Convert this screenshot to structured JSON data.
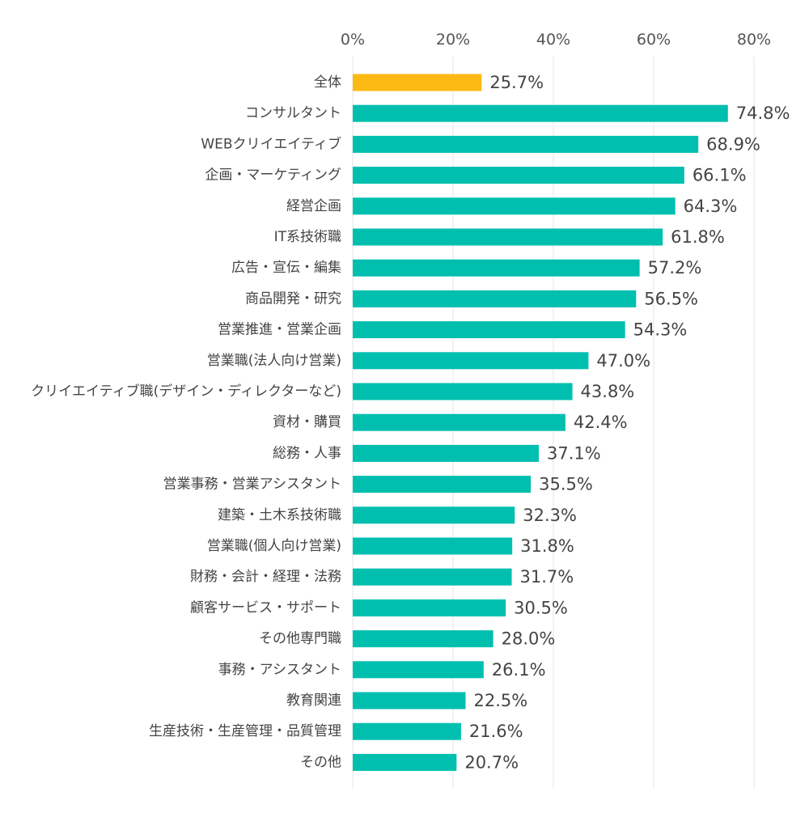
{
  "chart_data": {
    "type": "bar",
    "orientation": "horizontal",
    "xlim": [
      0,
      80
    ],
    "x_ticks": [
      "0%",
      "20%",
      "40%",
      "60%",
      "80%"
    ],
    "grid": true,
    "categories": [
      "全体",
      "コンサルタント",
      "WEBクリイエイティブ",
      "企画・マーケティング",
      "経営企画",
      "IT系技術職",
      "広告・宣伝・編集",
      "商品開発・研究",
      "営業推進・営業企画",
      "営業職(法人向け営業)",
      "クリイエイティブ職(デザイン・ディレクターなど)",
      "資材・購買",
      "総務・人事",
      "営業事務・営業アシスタント",
      "建築・土木系技術職",
      "営業職(個人向け営業)",
      "財務・会計・経理・法務",
      "顧客サービス・サポート",
      "その他専門職",
      "事務・アシスタント",
      "教育関連",
      "生産技術・生産管理・品質管理",
      "その他"
    ],
    "values": [
      25.7,
      74.8,
      68.9,
      66.1,
      64.3,
      61.8,
      57.2,
      56.5,
      54.3,
      47.0,
      43.8,
      42.4,
      37.1,
      35.5,
      32.3,
      31.8,
      31.7,
      30.5,
      28.0,
      26.1,
      22.5,
      21.6,
      20.7
    ],
    "value_labels": [
      "25.7%",
      "74.8%",
      "68.9%",
      "66.1%",
      "64.3%",
      "61.8%",
      "57.2%",
      "56.5%",
      "54.3%",
      "47.0%",
      "43.8%",
      "42.4%",
      "37.1%",
      "35.5%",
      "32.3%",
      "31.8%",
      "31.7%",
      "30.5%",
      "28.0%",
      "26.1%",
      "22.5%",
      "21.6%",
      "20.7%"
    ],
    "highlight_index": 0,
    "colors": {
      "highlight": "#FDB913",
      "bar": "#00BFAE",
      "grid": "#E6E6E6",
      "text": "#444444"
    }
  }
}
